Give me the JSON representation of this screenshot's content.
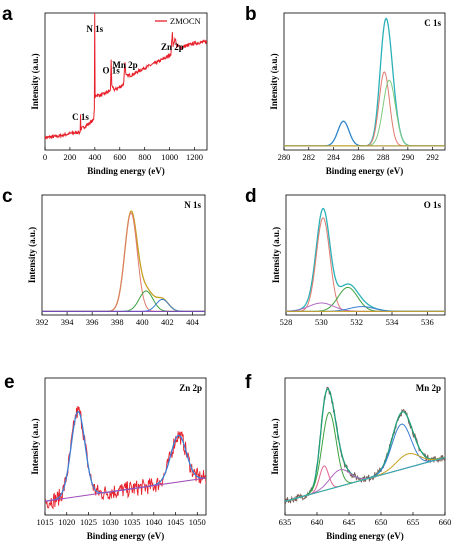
{
  "chart_data": [
    {
      "panel": "a",
      "type": "line",
      "title": "",
      "xlabel": "Binding energy (eV)",
      "ylabel": "Intensity (a.u.)",
      "xlim": [
        0,
        1300
      ],
      "xticks": [
        0,
        200,
        400,
        600,
        800,
        1000,
        1200
      ],
      "ylim": [
        0,
        1
      ],
      "legend": {
        "entries": [
          "ZMOCN"
        ],
        "placement": "top-right"
      },
      "annotations": [
        {
          "text": "C 1s",
          "x": 285,
          "y": 0.22
        },
        {
          "text": "N 1s",
          "x": 399,
          "y": 0.86
        },
        {
          "text": "O 1s",
          "x": 531,
          "y": 0.56
        },
        {
          "text": "Mn 2p",
          "x": 642,
          "y": 0.6
        },
        {
          "text": "Zn 2p",
          "x": 1022,
          "y": 0.73
        }
      ],
      "series": [
        {
          "color": "#e8202a",
          "points": [
            [
              0,
              0.09
            ],
            [
              100,
              0.1
            ],
            [
              200,
              0.12
            ],
            [
              270,
              0.13
            ],
            [
              282,
              0.13
            ],
            [
              285,
              0.26
            ],
            [
              288,
              0.15
            ],
            [
              300,
              0.16
            ],
            [
              350,
              0.19
            ],
            [
              390,
              0.22
            ],
            [
              396,
              0.3
            ],
            [
              399,
              1.0
            ],
            [
              402,
              0.38
            ],
            [
              408,
              0.4
            ],
            [
              450,
              0.4
            ],
            [
              500,
              0.42
            ],
            [
              525,
              0.44
            ],
            [
              531,
              0.66
            ],
            [
              536,
              0.46
            ],
            [
              560,
              0.44
            ],
            [
              600,
              0.46
            ],
            [
              630,
              0.48
            ],
            [
              642,
              0.64
            ],
            [
              648,
              0.56
            ],
            [
              655,
              0.54
            ],
            [
              700,
              0.55
            ],
            [
              800,
              0.6
            ],
            [
              900,
              0.64
            ],
            [
              980,
              0.68
            ],
            [
              1010,
              0.7
            ],
            [
              1022,
              0.86
            ],
            [
              1028,
              0.76
            ],
            [
              1045,
              0.82
            ],
            [
              1055,
              0.76
            ],
            [
              1100,
              0.75
            ],
            [
              1200,
              0.78
            ],
            [
              1300,
              0.79
            ]
          ]
        }
      ]
    },
    {
      "panel": "b",
      "type": "line",
      "title": "C 1s",
      "xlabel": "Binding energy (eV)",
      "ylabel": "Intensity (a.u.)",
      "xlim": [
        280,
        293
      ],
      "xticks": [
        280,
        282,
        284,
        286,
        288,
        290,
        292
      ],
      "ylim": [
        0,
        1
      ],
      "baseline": 0.03,
      "series": [
        {
          "color": "#2ab1b8",
          "kind": "envelope",
          "peaks": [
            {
              "c": 284.8,
              "h": 0.18,
              "w": 0.45
            },
            {
              "c": 288.1,
              "h": 0.54,
              "w": 0.42
            },
            {
              "c": 288.5,
              "h": 0.48,
              "w": 0.5
            }
          ]
        },
        {
          "color": "#e07a6f",
          "peaks": [
            {
              "c": 288.1,
              "h": 0.54,
              "w": 0.42
            }
          ]
        },
        {
          "color": "#7fc97f",
          "peaks": [
            {
              "c": 288.5,
              "h": 0.48,
              "w": 0.5
            }
          ]
        },
        {
          "color": "#3b7fd4",
          "peaks": [
            {
              "c": 284.8,
              "h": 0.18,
              "w": 0.45
            }
          ]
        },
        {
          "color": "#c7a020",
          "kind": "background",
          "values": [
            0.03,
            0.03
          ]
        }
      ]
    },
    {
      "panel": "c",
      "type": "line",
      "title": "N 1s",
      "xlabel": "",
      "ylabel": "Intensity (a.u.)",
      "xlim": [
        392,
        405
      ],
      "xticks": [
        392,
        394,
        396,
        398,
        400,
        402,
        404
      ],
      "ylim": [
        0,
        1
      ],
      "baseline": 0.03,
      "series": [
        {
          "color": "#c7a020",
          "kind": "envelope",
          "peaks": [
            {
              "c": 399.1,
              "h": 0.82,
              "w": 0.5
            },
            {
              "c": 400.3,
              "h": 0.17,
              "w": 0.55
            },
            {
              "c": 401.6,
              "h": 0.1,
              "w": 0.5
            }
          ]
        },
        {
          "color": "#e07a6f",
          "peaks": [
            {
              "c": 399.1,
              "h": 0.82,
              "w": 0.5
            }
          ]
        },
        {
          "color": "#3ca03c",
          "peaks": [
            {
              "c": 400.3,
              "h": 0.17,
              "w": 0.55
            }
          ]
        },
        {
          "color": "#3b7fd4",
          "peaks": [
            {
              "c": 401.6,
              "h": 0.1,
              "w": 0.5
            }
          ]
        },
        {
          "color": "#7a3fb8",
          "kind": "background",
          "values": [
            0.03,
            0.03
          ]
        }
      ]
    },
    {
      "panel": "d",
      "type": "line",
      "title": "O 1s",
      "xlabel": "",
      "ylabel": "Intensity (a.u.)",
      "xlim": [
        528,
        537
      ],
      "xticks": [
        528,
        530,
        532,
        534,
        536
      ],
      "ylim": [
        0,
        1
      ],
      "baseline": 0.03,
      "series": [
        {
          "color": "#2ab1b8",
          "kind": "envelope",
          "peaks": [
            {
              "c": 530.1,
              "h": 0.78,
              "w": 0.38
            },
            {
              "c": 531.5,
              "h": 0.2,
              "w": 0.55
            },
            {
              "c": 530.0,
              "h": 0.07,
              "w": 0.7
            },
            {
              "c": 532.3,
              "h": 0.04,
              "w": 0.7
            }
          ]
        },
        {
          "color": "#e07a6f",
          "peaks": [
            {
              "c": 530.1,
              "h": 0.78,
              "w": 0.38
            }
          ]
        },
        {
          "color": "#3ca03c",
          "peaks": [
            {
              "c": 531.5,
              "h": 0.2,
              "w": 0.55
            }
          ]
        },
        {
          "color": "#b06ac0",
          "peaks": [
            {
              "c": 530.0,
              "h": 0.07,
              "w": 0.7
            }
          ]
        },
        {
          "color": "#3b7fd4",
          "peaks": [
            {
              "c": 532.3,
              "h": 0.04,
              "w": 0.7
            }
          ]
        },
        {
          "color": "#c7a020",
          "kind": "background",
          "values": [
            0.03,
            0.03
          ]
        }
      ]
    },
    {
      "panel": "e",
      "type": "line",
      "title": "Zn 2p",
      "xlabel": "Binding energy (eV)",
      "ylabel": "Intensity (a.u.)",
      "xlim": [
        1015,
        1052
      ],
      "xticks": [
        1015,
        1020,
        1025,
        1030,
        1035,
        1040,
        1045,
        1050
      ],
      "ylim": [
        0,
        1
      ],
      "series": [
        {
          "color": "#e8202a",
          "kind": "raw",
          "noise": 0.06,
          "peaks": [
            {
              "c": 1022.6,
              "h": 0.62,
              "w": 1.6
            },
            {
              "c": 1045.7,
              "h": 0.34,
              "w": 1.8
            }
          ],
          "background": [
            0.1,
            0.27
          ]
        },
        {
          "color": "#3b7fd4",
          "kind": "envelope",
          "peaks": [
            {
              "c": 1022.6,
              "h": 0.62,
              "w": 1.6
            },
            {
              "c": 1045.7,
              "h": 0.34,
              "w": 1.8
            }
          ],
          "background": [
            0.1,
            0.27
          ]
        },
        {
          "color": "#a04ab8",
          "kind": "background",
          "values": [
            0.1,
            0.27
          ]
        }
      ]
    },
    {
      "panel": "f",
      "type": "line",
      "title": "Mn 2p",
      "xlabel": "Binding energy (eV)",
      "ylabel": "Intensity (a.u.)",
      "xlim": [
        635,
        660
      ],
      "xticks": [
        635,
        640,
        645,
        650,
        655,
        660
      ],
      "ylim": [
        0,
        1
      ],
      "series": [
        {
          "color": "#7a5a52",
          "kind": "raw",
          "noise": 0.025,
          "peaks": [
            {
              "c": 641.1,
              "h": 0.18,
              "w": 0.7
            },
            {
              "c": 641.9,
              "h": 0.56,
              "w": 1.1
            },
            {
              "c": 643.6,
              "h": 0.12,
              "w": 1.6
            },
            {
              "c": 653.2,
              "h": 0.33,
              "w": 1.5
            },
            {
              "c": 654.2,
              "h": 0.1,
              "w": 1.8
            }
          ],
          "background": [
            0.1,
            0.42
          ]
        },
        {
          "color": "#1ea07a",
          "kind": "envelope",
          "peaks": [
            {
              "c": 641.1,
              "h": 0.18,
              "w": 0.7
            },
            {
              "c": 641.9,
              "h": 0.56,
              "w": 1.1
            },
            {
              "c": 643.6,
              "h": 0.12,
              "w": 1.6
            },
            {
              "c": 653.2,
              "h": 0.33,
              "w": 1.5
            },
            {
              "c": 654.2,
              "h": 0.1,
              "w": 1.8
            }
          ],
          "background": [
            0.1,
            0.42
          ]
        },
        {
          "color": "#e0658f",
          "peaks": [
            {
              "c": 641.1,
              "h": 0.18,
              "w": 0.7
            }
          ],
          "background": [
            0.1,
            0.42
          ]
        },
        {
          "color": "#3ca03c",
          "peaks": [
            {
              "c": 641.9,
              "h": 0.56,
              "w": 1.1
            }
          ],
          "background": [
            0.1,
            0.42
          ]
        },
        {
          "color": "#b06ac0",
          "peaks": [
            {
              "c": 643.6,
              "h": 0.12,
              "w": 1.6
            }
          ],
          "background": [
            0.1,
            0.42
          ]
        },
        {
          "color": "#3b7fd4",
          "peaks": [
            {
              "c": 653.2,
              "h": 0.33,
              "w": 1.5
            }
          ],
          "background": [
            0.1,
            0.42
          ]
        },
        {
          "color": "#c7a020",
          "peaks": [
            {
              "c": 654.2,
              "h": 0.1,
              "w": 1.8
            }
          ],
          "background": [
            0.1,
            0.42
          ]
        },
        {
          "color": "#2ab1b8",
          "kind": "background",
          "values": [
            0.1,
            0.42
          ]
        }
      ]
    }
  ]
}
